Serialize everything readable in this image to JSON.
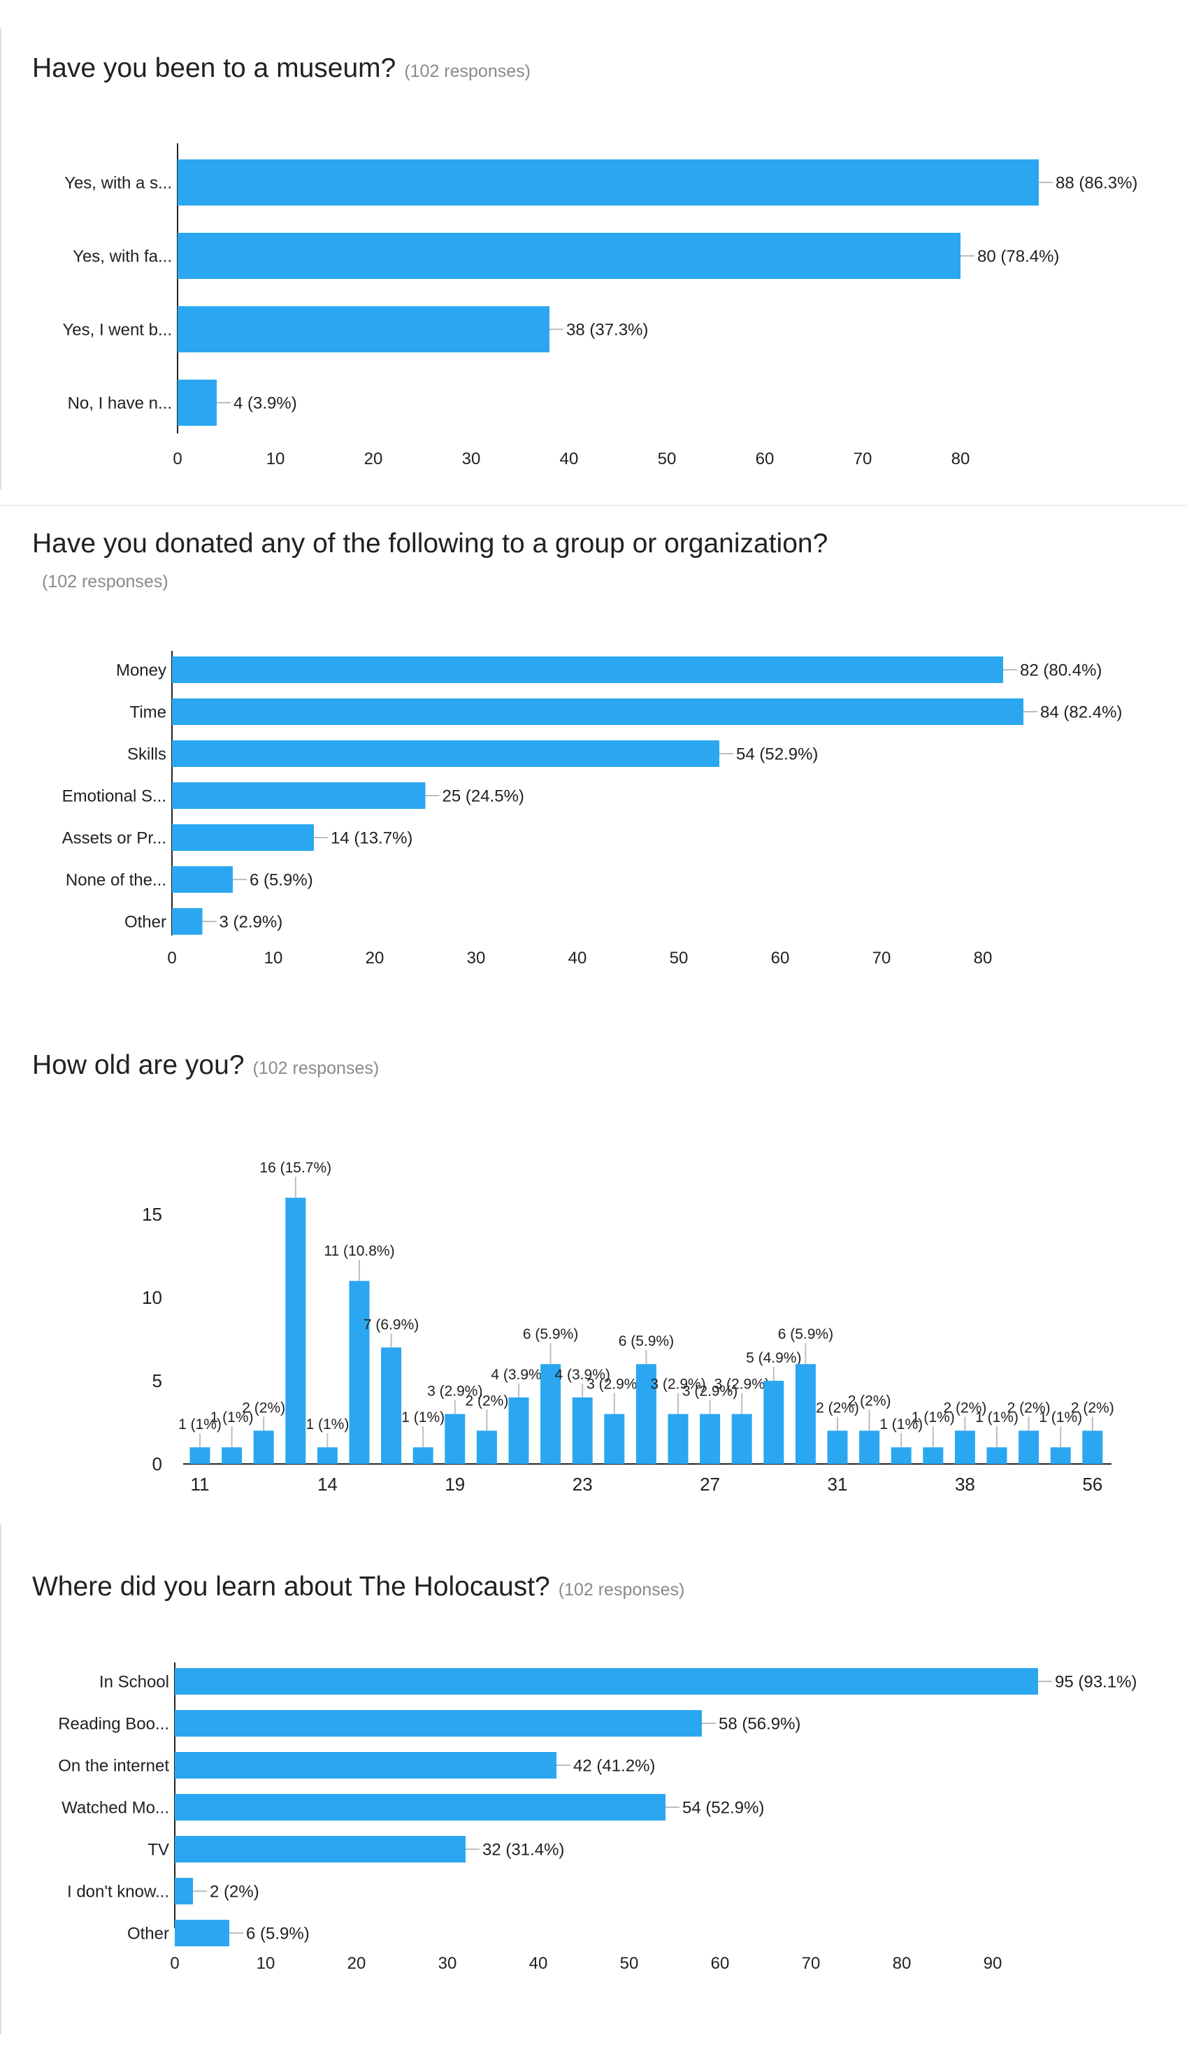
{
  "colors": {
    "bar": "#2aa7f0",
    "axis": "#222222",
    "tick": "#bdbdbd"
  },
  "charts": [
    {
      "question": "Have you been to a museum?",
      "responses": "(102 responses)",
      "categories": [
        "Yes, with a s...",
        "Yes, with fa...",
        "Yes, I went b...",
        "No, I have n..."
      ],
      "labels": [
        "88 (86.3%)",
        "80 (78.4%)",
        "38 (37.3%)",
        "4 (3.9%)"
      ],
      "ticks": [
        "0",
        "10",
        "20",
        "30",
        "40",
        "50",
        "60",
        "70",
        "80"
      ]
    },
    {
      "question": "Have you donated any of the following to a group or organization?",
      "responses": "(102 responses)",
      "categories": [
        "Money",
        "Time",
        "Skills",
        "Emotional S...",
        "Assets or Pr...",
        "None of the...",
        "Other"
      ],
      "labels": [
        "82 (80.4%)",
        "84 (82.4%)",
        "54 (52.9%)",
        "25 (24.5%)",
        "14 (13.7%)",
        "6 (5.9%)",
        "3 (2.9%)"
      ],
      "ticks": [
        "0",
        "10",
        "20",
        "30",
        "40",
        "50",
        "60",
        "70",
        "80"
      ]
    },
    {
      "question": "How old are you?",
      "responses": "(102 responses)",
      "yticks": [
        "0",
        "5",
        "10",
        "15"
      ],
      "xticks": [
        "11",
        "14",
        "19",
        "23",
        "27",
        "31",
        "38",
        "56"
      ],
      "labels": [
        "1 (1%)",
        "1 (1%)",
        "2 (2%)",
        "16 (15.7%)",
        "1 (1%)",
        "11 (10.8%)",
        "7 (6.9%)",
        "1 (1%)",
        "3 (2.9%)",
        "2 (2%)",
        "4 (3.9%)",
        "6 (5.9%)",
        "4 (3.9%)",
        "3 (2.9%)",
        "6 (5.9%)",
        "3 (2.9%)",
        "3 (2.9%)",
        "3 (2.9%)",
        "5 (4.9%)",
        "6 (5.9%)",
        "2 (2%)",
        "2 (2%)",
        "1 (1%)",
        "1 (1%)",
        "2 (2%)",
        "1 (1%)",
        "2 (2%)",
        "1 (1%)",
        "2 (2%)"
      ]
    },
    {
      "question": "Where did you learn about The Holocaust?",
      "responses": "(102 responses)",
      "categories": [
        "In School",
        "Reading Boo...",
        "On the internet",
        "Watched Mo...",
        "TV",
        "I don't know...",
        "Other"
      ],
      "labels": [
        "95 (93.1%)",
        "58 (56.9%)",
        "42 (41.2%)",
        "54 (52.9%)",
        "32 (31.4%)",
        "2 (2%)",
        "6 (5.9%)"
      ],
      "ticks": [
        "0",
        "10",
        "20",
        "30",
        "40",
        "50",
        "60",
        "70",
        "80",
        "90"
      ]
    }
  ],
  "chart_data": [
    {
      "type": "bar",
      "orientation": "horizontal",
      "title": "Have you been to a museum?",
      "subtitle": "(102 responses)",
      "categories": [
        "Yes, with a s...",
        "Yes, with fa...",
        "Yes, I went b...",
        "No, I have n..."
      ],
      "values": [
        88,
        80,
        38,
        4
      ],
      "xlim": [
        0,
        88
      ],
      "grid": false
    },
    {
      "type": "bar",
      "orientation": "horizontal",
      "title": "Have you donated any of the following to a group or organization?",
      "subtitle": "(102 responses)",
      "categories": [
        "Money",
        "Time",
        "Skills",
        "Emotional S...",
        "Assets or Pr...",
        "None of the...",
        "Other"
      ],
      "values": [
        82,
        84,
        54,
        25,
        14,
        6,
        3
      ],
      "xlim": [
        0,
        84
      ],
      "grid": false
    },
    {
      "type": "bar",
      "orientation": "vertical",
      "title": "How old are you?",
      "subtitle": "(102 responses)",
      "values": [
        1,
        1,
        2,
        16,
        1,
        11,
        7,
        1,
        3,
        2,
        4,
        6,
        4,
        3,
        6,
        3,
        3,
        3,
        5,
        6,
        2,
        2,
        1,
        1,
        2,
        1,
        2,
        1,
        2
      ],
      "ylim": [
        0,
        16
      ],
      "grid": false
    },
    {
      "type": "bar",
      "orientation": "horizontal",
      "title": "Where did you learn about The Holocaust?",
      "subtitle": "(102 responses)",
      "categories": [
        "In School",
        "Reading Boo...",
        "On the internet",
        "Watched Mo...",
        "TV",
        "I don't know...",
        "Other"
      ],
      "values": [
        95,
        58,
        42,
        54,
        32,
        2,
        6
      ],
      "xlim": [
        0,
        95
      ],
      "grid": false
    }
  ]
}
